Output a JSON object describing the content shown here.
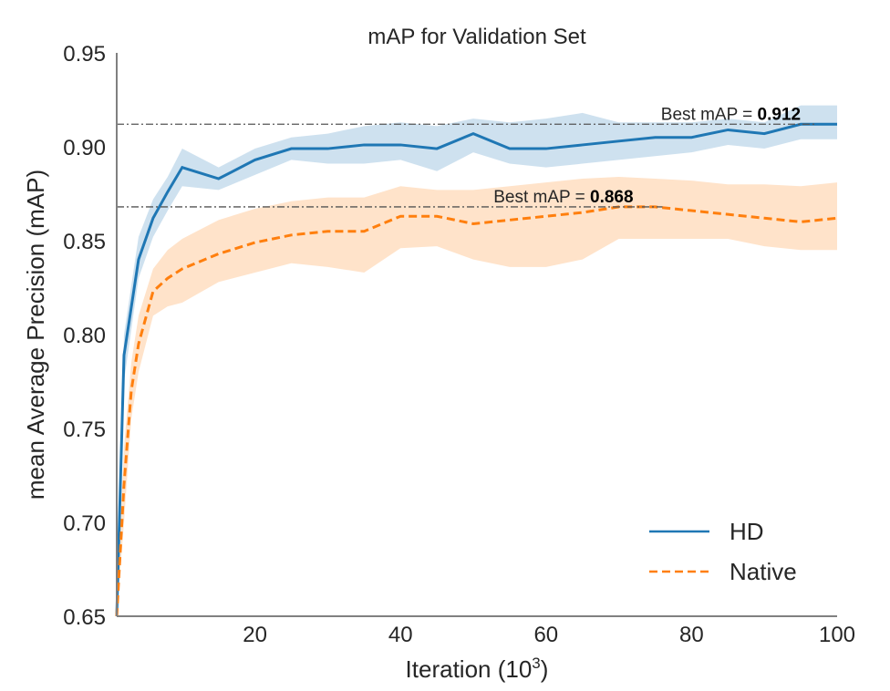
{
  "chart_data": {
    "type": "line",
    "title": "mAP for Validation Set",
    "xlabel": "Iteration (10",
    "xlabel_sup": "3",
    "xlabel_close": ")",
    "ylabel": "mean Average Precision (mAP)",
    "xlim": [
      1,
      100
    ],
    "ylim": [
      0.65,
      0.95
    ],
    "xticks": [
      20,
      40,
      60,
      80,
      100
    ],
    "yticks": [
      "0.65",
      "0.70",
      "0.75",
      "0.80",
      "0.85",
      "0.90",
      "0.95"
    ],
    "grid": false,
    "legend_position": "lower-right",
    "series": [
      {
        "name": "HD",
        "color": "#1f77b4",
        "style": "solid",
        "x": [
          1,
          2,
          4,
          6,
          8,
          10,
          15,
          20,
          25,
          30,
          35,
          40,
          45,
          50,
          55,
          60,
          65,
          70,
          75,
          80,
          85,
          90,
          95,
          100
        ],
        "y": [
          0.62,
          0.789,
          0.84,
          0.862,
          0.876,
          0.889,
          0.883,
          0.893,
          0.899,
          0.899,
          0.901,
          0.901,
          0.899,
          0.907,
          0.899,
          0.899,
          0.901,
          0.903,
          0.905,
          0.905,
          0.909,
          0.907,
          0.912,
          0.912
        ],
        "upper": [
          0.66,
          0.8,
          0.852,
          0.872,
          0.884,
          0.899,
          0.889,
          0.899,
          0.905,
          0.907,
          0.911,
          0.913,
          0.911,
          0.915,
          0.913,
          0.915,
          0.918,
          0.913,
          0.913,
          0.913,
          0.915,
          0.913,
          0.922,
          0.922
        ],
        "lower": [
          0.6,
          0.775,
          0.83,
          0.852,
          0.866,
          0.879,
          0.877,
          0.885,
          0.893,
          0.891,
          0.891,
          0.893,
          0.887,
          0.897,
          0.891,
          0.889,
          0.891,
          0.893,
          0.895,
          0.897,
          0.901,
          0.899,
          0.904,
          0.904
        ]
      },
      {
        "name": "Native",
        "color": "#ff7f0e",
        "style": "dashed",
        "x": [
          1,
          2,
          3,
          4,
          6,
          8,
          10,
          15,
          20,
          25,
          30,
          35,
          40,
          45,
          50,
          55,
          60,
          65,
          70,
          75,
          80,
          85,
          90,
          95,
          100
        ],
        "y": [
          0.6,
          0.72,
          0.77,
          0.795,
          0.823,
          0.83,
          0.835,
          0.843,
          0.849,
          0.853,
          0.855,
          0.855,
          0.863,
          0.863,
          0.859,
          0.861,
          0.863,
          0.865,
          0.868,
          0.868,
          0.866,
          0.864,
          0.862,
          0.86,
          0.862
        ],
        "upper": [
          0.62,
          0.74,
          0.785,
          0.81,
          0.835,
          0.845,
          0.851,
          0.861,
          0.867,
          0.871,
          0.873,
          0.873,
          0.879,
          0.877,
          0.877,
          0.879,
          0.881,
          0.883,
          0.884,
          0.883,
          0.882,
          0.88,
          0.88,
          0.879,
          0.881
        ],
        "lower": [
          0.58,
          0.7,
          0.755,
          0.78,
          0.81,
          0.815,
          0.817,
          0.828,
          0.833,
          0.838,
          0.836,
          0.833,
          0.846,
          0.847,
          0.84,
          0.836,
          0.836,
          0.84,
          0.851,
          0.851,
          0.851,
          0.851,
          0.847,
          0.845,
          0.845
        ]
      }
    ],
    "annotations": [
      {
        "prefix": "Best mAP = ",
        "value": "0.912",
        "y": 0.912,
        "x_end": 97,
        "text_x": 95
      },
      {
        "prefix": "Best mAP = ",
        "value": "0.868",
        "y": 0.868,
        "x_end": 76,
        "text_x": 72
      }
    ]
  }
}
